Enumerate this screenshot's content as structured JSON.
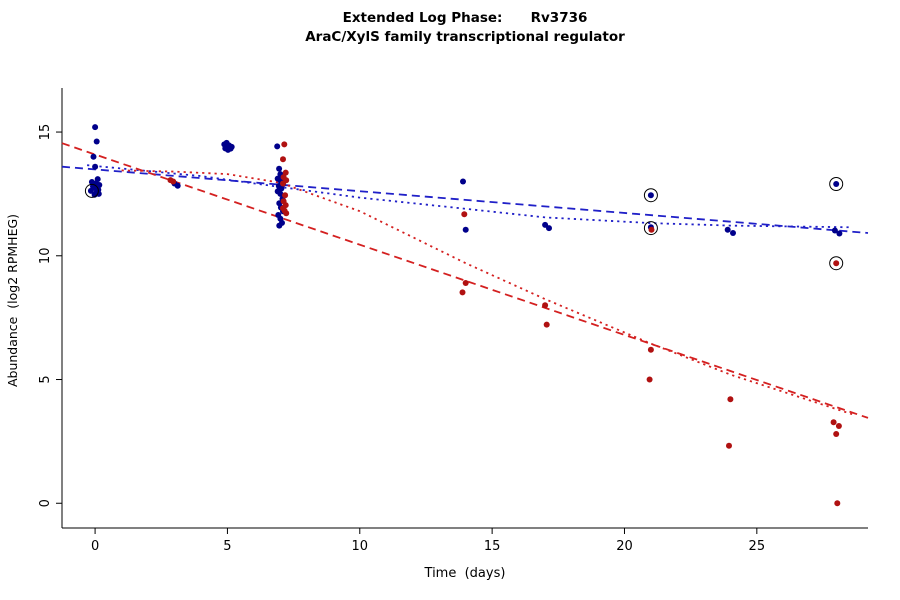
{
  "chart_data": {
    "type": "scatter",
    "title_display": "Extended Log Phase:      Rv3736",
    "title": "Extended Log Phase: Rv3736",
    "subtitle": "AraC/XylS family transcriptional regulator",
    "xlabel": "Time  (days)",
    "ylabel": "Abundance  (log2 RPMHEG)",
    "xlim": [
      -1.25,
      29.2
    ],
    "ylim": [
      -1.0,
      16.78
    ],
    "xticks": [
      0,
      5,
      10,
      15,
      20,
      25
    ],
    "yticks": [
      0,
      5,
      10,
      15
    ],
    "grid": false,
    "legend": "none",
    "colors": {
      "blue": "#00008B",
      "red": "#B01111",
      "blue_line": "#2020C8",
      "red_line": "#D42020",
      "axis": "#000000",
      "circle_mark": "#000000"
    },
    "series": [
      {
        "name": "blue_points",
        "color": "blue",
        "points": [
          [
            0,
            15.2
          ],
          [
            0.06,
            14.62
          ],
          [
            -0.06,
            14.0
          ],
          [
            0,
            13.6
          ],
          [
            0.1,
            13.1
          ],
          [
            -0.12,
            12.98
          ],
          [
            0.04,
            12.92
          ],
          [
            0.16,
            12.86
          ],
          [
            -0.08,
            12.8
          ],
          [
            0.02,
            12.73
          ],
          [
            0.12,
            12.67
          ],
          [
            -0.16,
            12.62
          ],
          [
            0.06,
            12.56
          ],
          [
            -0.02,
            12.47
          ],
          [
            0.14,
            12.5
          ],
          [
            3.0,
            12.92
          ],
          [
            3.12,
            12.83
          ],
          [
            4.88,
            14.5
          ],
          [
            4.97,
            14.56
          ],
          [
            5.06,
            14.46
          ],
          [
            5.16,
            14.4
          ],
          [
            4.92,
            14.34
          ],
          [
            5.02,
            14.28
          ],
          [
            5.12,
            14.33
          ],
          [
            6.88,
            14.42
          ],
          [
            6.95,
            13.52
          ],
          [
            7.0,
            13.3
          ],
          [
            7.08,
            13.22
          ],
          [
            6.9,
            13.12
          ],
          [
            7.02,
            13.0
          ],
          [
            7.1,
            12.9
          ],
          [
            6.94,
            12.82
          ],
          [
            7.04,
            12.72
          ],
          [
            6.9,
            12.6
          ],
          [
            7.0,
            12.5
          ],
          [
            7.08,
            12.3
          ],
          [
            6.96,
            12.12
          ],
          [
            7.02,
            11.95
          ],
          [
            7.1,
            11.8
          ],
          [
            6.92,
            11.65
          ],
          [
            7.0,
            11.5
          ],
          [
            7.06,
            11.33
          ],
          [
            6.96,
            11.22
          ],
          [
            13.9,
            13.0
          ],
          [
            14.0,
            11.05
          ],
          [
            17.0,
            11.25
          ],
          [
            17.15,
            11.12
          ],
          [
            21.0,
            12.45
          ],
          [
            21.0,
            11.15
          ],
          [
            23.9,
            11.05
          ],
          [
            24.1,
            10.92
          ],
          [
            28.0,
            12.9
          ],
          [
            27.95,
            11.02
          ],
          [
            28.12,
            10.9
          ]
        ]
      },
      {
        "name": "red_points",
        "color": "red",
        "points": [
          [
            2.85,
            13.06
          ],
          [
            2.95,
            13.0
          ],
          [
            7.15,
            14.5
          ],
          [
            7.1,
            13.9
          ],
          [
            7.2,
            13.36
          ],
          [
            7.12,
            13.18
          ],
          [
            7.22,
            13.05
          ],
          [
            7.1,
            12.92
          ],
          [
            7.18,
            12.45
          ],
          [
            7.12,
            12.2
          ],
          [
            7.2,
            12.05
          ],
          [
            7.1,
            11.92
          ],
          [
            7.16,
            11.82
          ],
          [
            7.22,
            11.72
          ],
          [
            13.95,
            11.68
          ],
          [
            14.0,
            8.9
          ],
          [
            13.88,
            8.52
          ],
          [
            17.0,
            8.0
          ],
          [
            17.06,
            7.22
          ],
          [
            21.02,
            11.05
          ],
          [
            21.0,
            6.2
          ],
          [
            20.95,
            5.0
          ],
          [
            24.0,
            4.2
          ],
          [
            23.95,
            2.32
          ],
          [
            28.0,
            9.7
          ],
          [
            27.9,
            3.27
          ],
          [
            28.1,
            3.12
          ],
          [
            28.0,
            2.8
          ],
          [
            28.04,
            0.0
          ]
        ]
      }
    ],
    "circled_points": [
      [
        -0.12,
        12.62
      ],
      [
        21.0,
        12.45
      ],
      [
        21.0,
        11.12
      ],
      [
        28.0,
        12.9
      ],
      [
        28.0,
        9.7
      ]
    ],
    "lines": [
      {
        "name": "blue_dashed_trend",
        "color": "blue_line",
        "dash": "dashed",
        "points": [
          [
            -1.25,
            13.6
          ],
          [
            29.2,
            10.92
          ]
        ]
      },
      {
        "name": "blue_dotted_trend",
        "color": "blue_line",
        "dash": "dotted",
        "points": [
          [
            -0.3,
            13.66
          ],
          [
            4,
            13.22
          ],
          [
            7,
            12.78
          ],
          [
            10,
            12.35
          ],
          [
            14,
            11.9
          ],
          [
            17,
            11.55
          ],
          [
            21,
            11.32
          ],
          [
            24,
            11.22
          ],
          [
            28.6,
            11.15
          ]
        ]
      },
      {
        "name": "red_dashed_trend",
        "color": "red_line",
        "dash": "dashed",
        "points": [
          [
            -1.25,
            14.55
          ],
          [
            29.2,
            3.45
          ]
        ]
      },
      {
        "name": "red_dotted_trend",
        "color": "red_line",
        "dash": "dotted",
        "points": [
          [
            1.0,
            13.45
          ],
          [
            3,
            13.4
          ],
          [
            5,
            13.3
          ],
          [
            7,
            12.95
          ],
          [
            10,
            11.8
          ],
          [
            14,
            9.7
          ],
          [
            17,
            8.25
          ],
          [
            21,
            6.45
          ],
          [
            24,
            5.2
          ],
          [
            28.6,
            3.6
          ]
        ]
      }
    ]
  }
}
